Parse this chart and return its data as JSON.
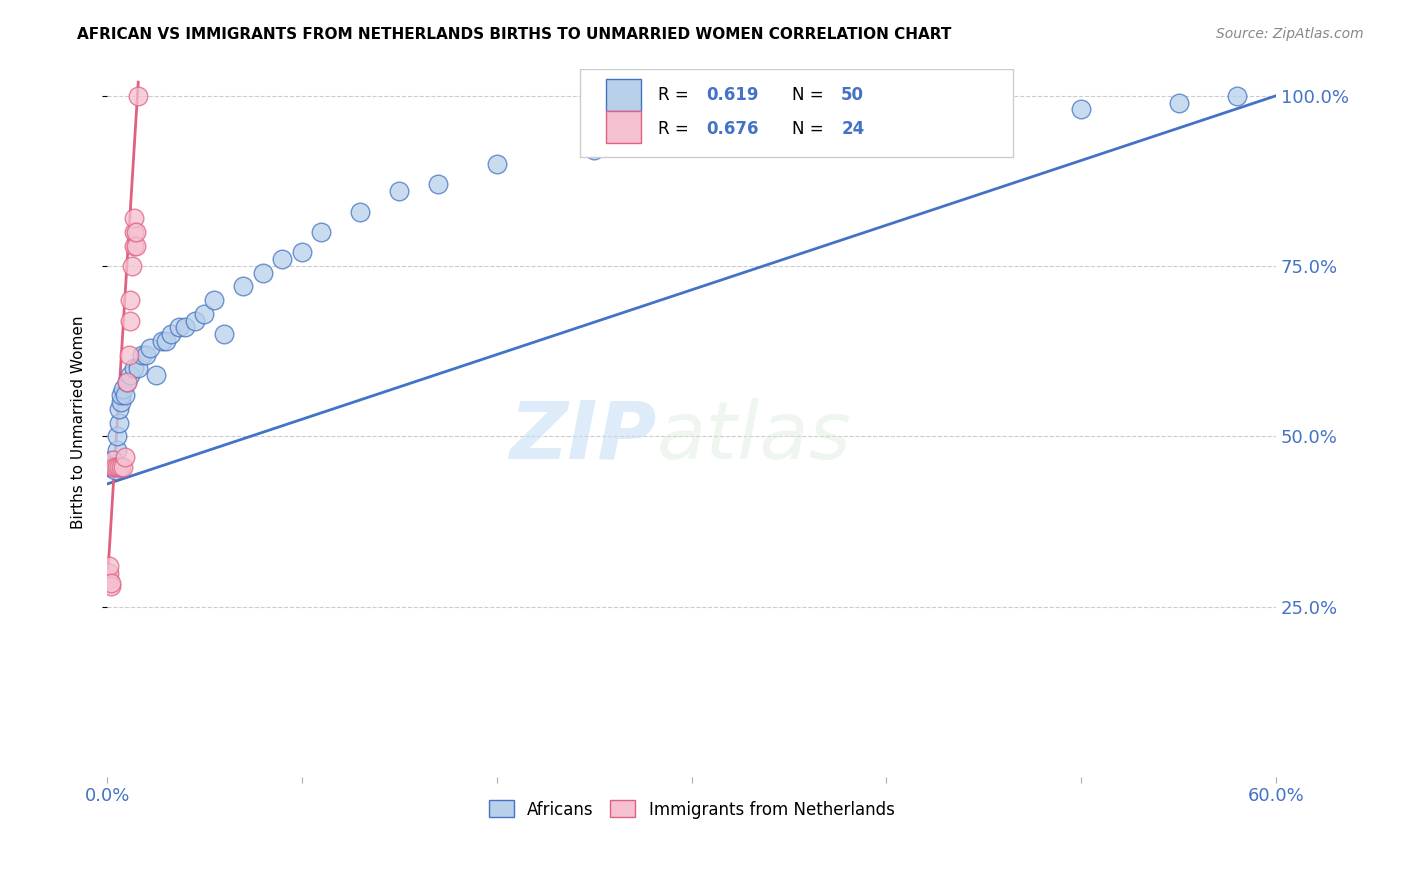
{
  "title": "AFRICAN VS IMMIGRANTS FROM NETHERLANDS BIRTHS TO UNMARRIED WOMEN CORRELATION CHART",
  "source": "Source: ZipAtlas.com",
  "ylabel": "Births to Unmarried Women",
  "R1": "0.619",
  "N1": "50",
  "R2": "0.676",
  "N2": "24",
  "color_blue": "#b8d0ea",
  "color_pink": "#f5c0d0",
  "line_blue": "#4472c4",
  "line_pink": "#e06080",
  "watermark_zip": "ZIP",
  "watermark_atlas": "atlas",
  "legend_label1": "Africans",
  "legend_label2": "Immigrants from Netherlands",
  "africans_x": [
    0.001,
    0.001,
    0.002,
    0.002,
    0.003,
    0.003,
    0.004,
    0.004,
    0.005,
    0.005,
    0.006,
    0.006,
    0.007,
    0.007,
    0.008,
    0.009,
    0.01,
    0.012,
    0.014,
    0.016,
    0.018,
    0.02,
    0.022,
    0.025,
    0.028,
    0.03,
    0.033,
    0.037,
    0.04,
    0.045,
    0.05,
    0.055,
    0.06,
    0.07,
    0.08,
    0.09,
    0.1,
    0.11,
    0.13,
    0.15,
    0.17,
    0.2,
    0.25,
    0.3,
    0.35,
    0.4,
    0.45,
    0.5,
    0.55,
    0.58
  ],
  "africans_y": [
    0.455,
    0.46,
    0.455,
    0.465,
    0.455,
    0.465,
    0.45,
    0.46,
    0.48,
    0.5,
    0.52,
    0.54,
    0.55,
    0.56,
    0.57,
    0.56,
    0.58,
    0.59,
    0.6,
    0.6,
    0.62,
    0.62,
    0.63,
    0.59,
    0.64,
    0.64,
    0.65,
    0.66,
    0.66,
    0.67,
    0.68,
    0.7,
    0.65,
    0.72,
    0.74,
    0.76,
    0.77,
    0.8,
    0.83,
    0.86,
    0.87,
    0.9,
    0.92,
    0.94,
    0.95,
    0.96,
    0.97,
    0.98,
    0.99,
    1.0
  ],
  "netherlands_x": [
    0.001,
    0.001,
    0.001,
    0.002,
    0.002,
    0.003,
    0.003,
    0.004,
    0.005,
    0.006,
    0.007,
    0.008,
    0.009,
    0.01,
    0.011,
    0.012,
    0.012,
    0.013,
    0.014,
    0.014,
    0.014,
    0.015,
    0.015,
    0.016
  ],
  "netherlands_y": [
    0.29,
    0.3,
    0.31,
    0.28,
    0.285,
    0.455,
    0.465,
    0.455,
    0.455,
    0.455,
    0.455,
    0.455,
    0.47,
    0.58,
    0.62,
    0.67,
    0.7,
    0.75,
    0.78,
    0.8,
    0.82,
    0.78,
    0.8,
    1.0
  ],
  "xlim": [
    0.0,
    0.6
  ],
  "ylim": [
    0.0,
    1.04
  ],
  "ytick_vals": [
    0.25,
    0.5,
    0.75,
    1.0
  ],
  "ytick_labels": [
    "25.0%",
    "50.0%",
    "75.0%",
    "100.0%"
  ],
  "xtick_left_label": "0.0%",
  "xtick_right_label": "60.0%"
}
